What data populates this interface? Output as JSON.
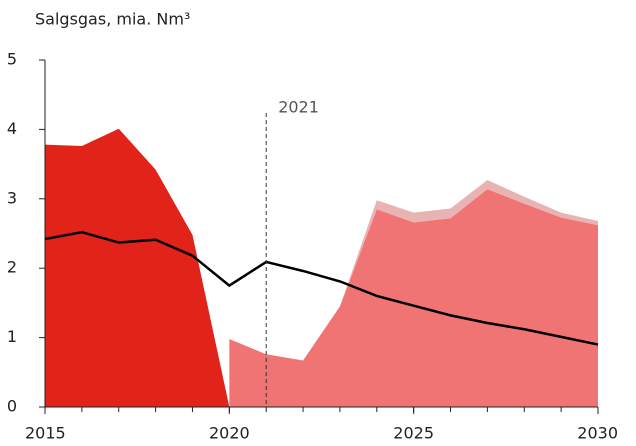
{
  "chart_data": {
    "type": "area_line",
    "title": "Salgsgas, mia. Nm³",
    "x": [
      2015,
      2016,
      2017,
      2018,
      2019,
      2020,
      2021,
      2022,
      2023,
      2024,
      2025,
      2026,
      2027,
      2028,
      2029,
      2030
    ],
    "xlim": [
      2015,
      2030
    ],
    "xticks": [
      2015,
      2020,
      2025,
      2030
    ],
    "ylim": [
      0,
      5
    ],
    "yticks": [
      0,
      1,
      2,
      3,
      4,
      5
    ],
    "stacked_areas": [
      {
        "color": "#e2231a",
        "values": [
          3.78,
          3.76,
          4.01,
          3.42,
          2.48,
          0,
          null,
          null,
          null,
          null,
          null,
          null,
          null,
          null,
          null,
          null
        ]
      },
      {
        "color": "#f07474",
        "values": [
          null,
          null,
          null,
          null,
          null,
          0.98,
          0.76,
          0.67,
          1.45,
          2.85,
          2.66,
          2.72,
          3.14,
          2.93,
          2.73,
          2.62
        ]
      },
      {
        "color": "#e8b3b3",
        "values": [
          null,
          null,
          null,
          null,
          null,
          0,
          0,
          0,
          0,
          0.13,
          0.14,
          0.14,
          0.13,
          0.1,
          0.07,
          0.06
        ]
      }
    ],
    "line": {
      "color": "#000000",
      "values": [
        2.42,
        2.52,
        2.37,
        2.41,
        2.18,
        1.75,
        2.09,
        1.96,
        1.81,
        1.6,
        1.46,
        1.32,
        1.21,
        1.12,
        1.01,
        0.9
      ]
    },
    "annotations": [
      {
        "text": "2021",
        "x": 2021
      }
    ]
  }
}
